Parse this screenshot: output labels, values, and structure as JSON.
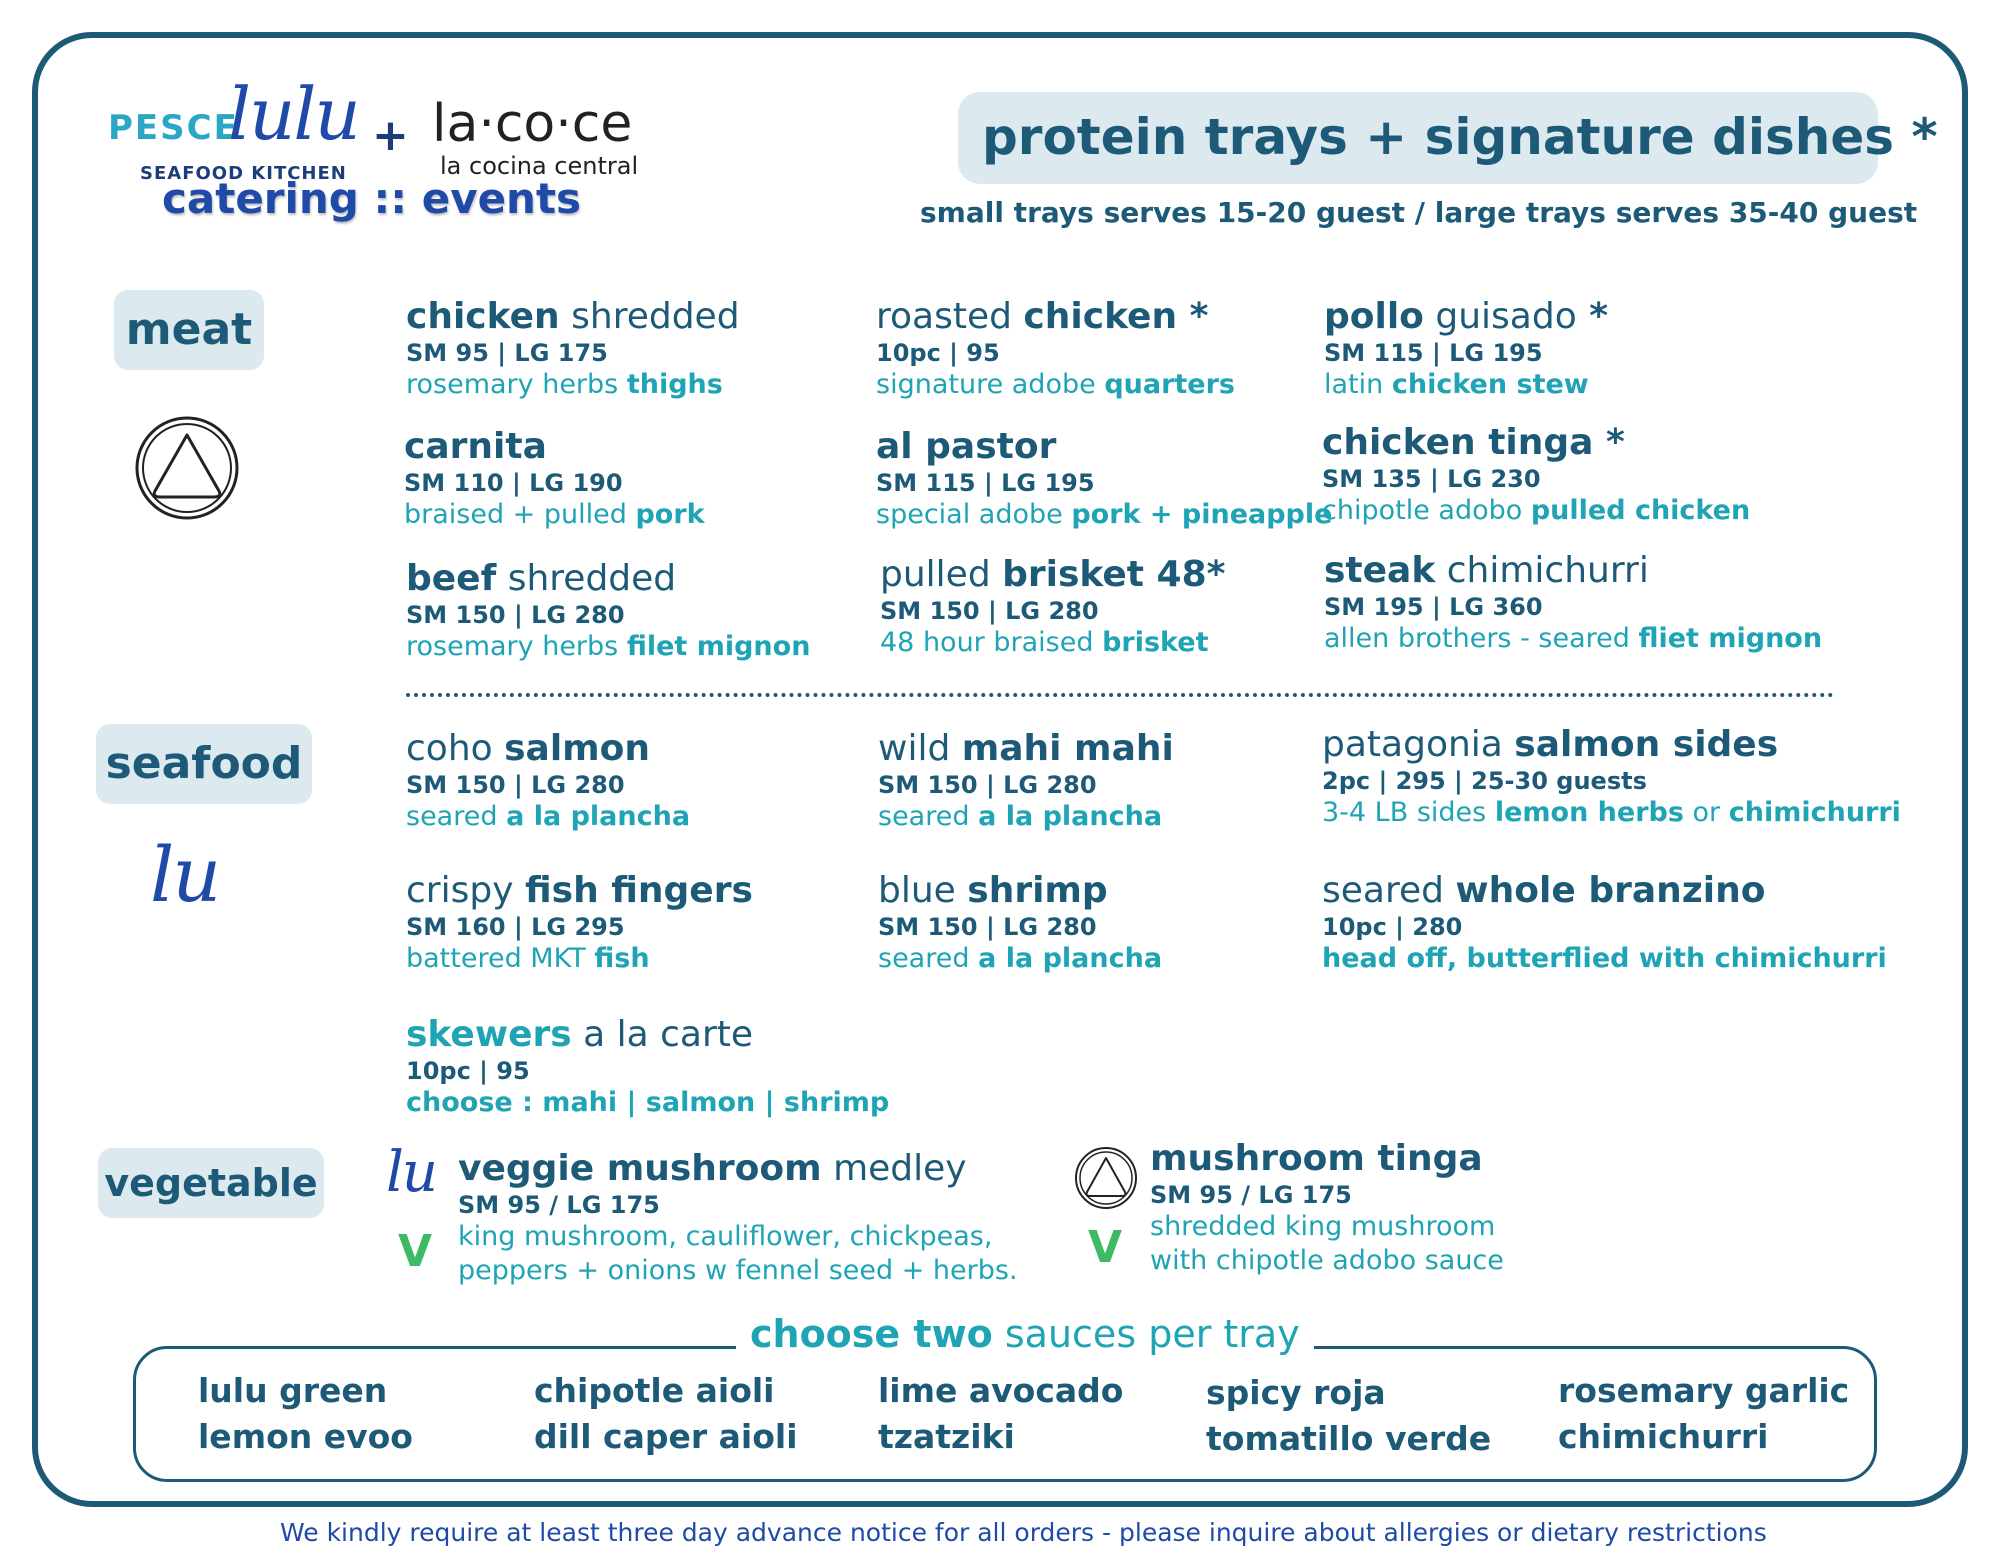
{
  "logo": {
    "pesce": "PESCE",
    "lulu": "lulu",
    "seafood_kitchen": "SEAFOOD KITCHEN",
    "plus": "+",
    "lacoce": "la·co·ce",
    "lacocina": "la cocina central",
    "catering": "catering :: events"
  },
  "header": {
    "title": "protein trays  +  signature dishes *",
    "subtitle": "small trays serves 15-20 guest / large trays serves 35-40 guest"
  },
  "categories": {
    "meat": "meat",
    "seafood": "seafood",
    "vegetable": "vegetable"
  },
  "icons": {
    "lu_mark": "lu",
    "veg_mark": "V",
    "triangle": "triangle-circle-icon"
  },
  "meat": {
    "chicken_shredded": {
      "bold": "chicken",
      "light": " shredded",
      "price": "SM 95  |  LG 175",
      "desc_light": "rosemary herbs ",
      "desc_bold": "thighs"
    },
    "roasted_chicken": {
      "light": "roasted ",
      "bold": "chicken *",
      "price": "10pc  |  95",
      "desc_light": "signature adobe ",
      "desc_bold": "quarters"
    },
    "pollo_guisado": {
      "bold": "pollo",
      "light": " guisado",
      "bold2": " *",
      "price": "SM 115  |  LG 195",
      "desc_light": "latin ",
      "desc_bold": "chicken stew"
    },
    "carnita": {
      "bold": "carnita",
      "price": "SM 110  |  LG 190",
      "desc_light": "braised + pulled ",
      "desc_bold": "pork"
    },
    "al_pastor": {
      "bold": "al pastor",
      "price": "SM 115  |  LG 195",
      "desc_light": "special adobe ",
      "desc_bold": "pork + pineapple"
    },
    "chicken_tinga": {
      "bold": "chicken tinga *",
      "price": "SM 135  |  LG  230",
      "desc_light": "chipotle adobo ",
      "desc_bold": "pulled chicken"
    },
    "beef_shredded": {
      "bold": "beef",
      "light": " shredded",
      "price": "SM 150  |  LG 280",
      "desc_light": "rosemary herbs ",
      "desc_bold": "filet mignon"
    },
    "pulled_brisket": {
      "light": "pulled ",
      "bold": "brisket 48*",
      "price": "SM 150  |  LG 280",
      "desc_light": "48 hour braised ",
      "desc_bold": "brisket"
    },
    "steak_chimichurri": {
      "bold": "steak",
      "light": " chimichurri",
      "price": "SM 195  |   LG 360",
      "desc_light": "allen brothers - seared ",
      "desc_bold": "fliet mignon"
    }
  },
  "seafood": {
    "coho_salmon": {
      "light": "coho ",
      "bold": "salmon",
      "price": "SM 150  |  LG 280",
      "desc_light": "seared ",
      "desc_bold": "a la plancha"
    },
    "mahi_mahi": {
      "light": "wild ",
      "bold": "mahi mahi",
      "price": "SM 150  |  LG 280",
      "desc_light": "seared ",
      "desc_bold": "a la plancha"
    },
    "salmon_sides": {
      "light": "patagonia ",
      "bold": "salmon sides",
      "price": "2pc  |  295  |   25-30 guests",
      "desc_light": "3-4 LB sides ",
      "desc_bold": "lemon herbs",
      "desc_light2": " or ",
      "desc_bold2": "chimichurri"
    },
    "fish_fingers": {
      "light": "crispy ",
      "bold": "fish fingers",
      "price": "SM 160  |  LG 295",
      "desc_light": "battered MKT ",
      "desc_bold": "fish"
    },
    "blue_shrimp": {
      "light": "blue ",
      "bold": "shrimp",
      "price": "SM 150  |  LG 280",
      "desc_light": "seared ",
      "desc_bold": "a la plancha"
    },
    "branzino": {
      "light": "seared ",
      "bold": "whole branzino",
      "price": "10pc  |  280",
      "desc_bold": "head off, butterflied with chimichurri"
    },
    "skewers": {
      "bold": "skewers",
      "light": " a la carte",
      "price": "10pc  |  95",
      "desc_bold": "choose : mahi  |  salmon  |  shrimp"
    }
  },
  "vegetable": {
    "veggie_medley": {
      "bold": "veggie mushroom",
      "light": " medley",
      "price": "SM 95 /  LG 175",
      "desc1": "king mushroom, cauliflower, chickpeas,",
      "desc2": "peppers + onions w fennel seed + herbs."
    },
    "mushroom_tinga": {
      "bold": "mushroom tinga",
      "price": "SM 95 / LG 175",
      "desc1": "shredded king mushroom",
      "desc2": "with chipotle adobo sauce"
    }
  },
  "sauces": {
    "title_bold": "choose two",
    "title_light": " sauces per tray",
    "items": [
      "lulu green",
      "lemon evoo",
      "chipotle aioli",
      "dill caper aioli",
      "lime avocado",
      "tzatziki",
      "spicy roja",
      "tomatillo verde",
      "rosemary garlic",
      "chimichurri"
    ]
  },
  "footer": "We kindly require at least three day advance notice for all orders - please inquire about allergies or dietary restrictions"
}
